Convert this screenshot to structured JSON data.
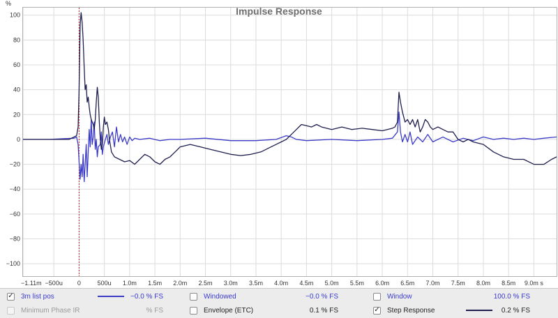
{
  "chart_data": {
    "type": "line",
    "title": "Impulse Response",
    "ylabel": "%",
    "ylim": [
      -110,
      106
    ],
    "xlim_ms": [
      -1.11,
      9.45
    ],
    "y_ticks": [
      100,
      80,
      60,
      40,
      20,
      0,
      -20,
      -40,
      -60,
      -80,
      -100
    ],
    "x_ticks": [
      {
        "v": -1.11,
        "label": "-1.11m"
      },
      {
        "v": -0.5,
        "label": "-500u"
      },
      {
        "v": 0,
        "label": "0"
      },
      {
        "v": 0.5,
        "label": "500u"
      },
      {
        "v": 1.0,
        "label": "1.0m"
      },
      {
        "v": 1.5,
        "label": "1.5m"
      },
      {
        "v": 2.0,
        "label": "2.0m"
      },
      {
        "v": 2.5,
        "label": "2.5m"
      },
      {
        "v": 3.0,
        "label": "3.0m"
      },
      {
        "v": 3.5,
        "label": "3.5m"
      },
      {
        "v": 4.0,
        "label": "4.0m"
      },
      {
        "v": 4.5,
        "label": "4.5m"
      },
      {
        "v": 5.0,
        "label": "5.0m"
      },
      {
        "v": 5.5,
        "label": "5.5m"
      },
      {
        "v": 6.0,
        "label": "6.0m"
      },
      {
        "v": 6.5,
        "label": "6.5m"
      },
      {
        "v": 7.0,
        "label": "7.0m"
      },
      {
        "v": 7.5,
        "label": "7.5m"
      },
      {
        "v": 8.0,
        "label": "8.0m"
      },
      {
        "v": 8.5,
        "label": "8.5m"
      },
      {
        "v": 9.0,
        "label": "9.0m s"
      }
    ],
    "grid": true,
    "marker_x": 0,
    "series": [
      {
        "name": "3m list pos",
        "color": "#3b3bc8",
        "points": [
          [
            -1.11,
            0
          ],
          [
            -0.6,
            0
          ],
          [
            -0.1,
            1
          ],
          [
            -0.05,
            2
          ],
          [
            -0.02,
            -4
          ],
          [
            0,
            -18
          ],
          [
            0.02,
            -32
          ],
          [
            0.04,
            -20
          ],
          [
            0.06,
            -30
          ],
          [
            0.08,
            -12
          ],
          [
            0.1,
            -34
          ],
          [
            0.12,
            -20
          ],
          [
            0.14,
            -4
          ],
          [
            0.16,
            -30
          ],
          [
            0.18,
            -10
          ],
          [
            0.2,
            8
          ],
          [
            0.22,
            -6
          ],
          [
            0.24,
            16
          ],
          [
            0.26,
            -4
          ],
          [
            0.28,
            2
          ],
          [
            0.3,
            14
          ],
          [
            0.32,
            -8
          ],
          [
            0.34,
            0
          ],
          [
            0.36,
            -14
          ],
          [
            0.38,
            -6
          ],
          [
            0.42,
            -4
          ],
          [
            0.44,
            6
          ],
          [
            0.46,
            -12
          ],
          [
            0.48,
            -6
          ],
          [
            0.52,
            0
          ],
          [
            0.55,
            4
          ],
          [
            0.58,
            -4
          ],
          [
            0.62,
            2
          ],
          [
            0.66,
            6
          ],
          [
            0.7,
            -6
          ],
          [
            0.74,
            10
          ],
          [
            0.78,
            -2
          ],
          [
            0.82,
            4
          ],
          [
            0.86,
            -2
          ],
          [
            0.9,
            2
          ],
          [
            0.95,
            -4
          ],
          [
            1.0,
            2
          ],
          [
            1.05,
            -1
          ],
          [
            1.1,
            1
          ],
          [
            1.2,
            0
          ],
          [
            1.4,
            1
          ],
          [
            1.6,
            -1
          ],
          [
            1.8,
            0
          ],
          [
            2.0,
            0
          ],
          [
            2.5,
            1
          ],
          [
            3.0,
            -1
          ],
          [
            3.5,
            -1
          ],
          [
            3.9,
            0
          ],
          [
            4.1,
            3
          ],
          [
            4.2,
            2
          ],
          [
            4.3,
            0
          ],
          [
            4.5,
            -1
          ],
          [
            5.0,
            0
          ],
          [
            5.5,
            -1
          ],
          [
            6.0,
            0
          ],
          [
            6.2,
            1
          ],
          [
            6.3,
            6
          ],
          [
            6.33,
            22
          ],
          [
            6.36,
            6
          ],
          [
            6.4,
            -2
          ],
          [
            6.45,
            4
          ],
          [
            6.5,
            -2
          ],
          [
            6.55,
            6
          ],
          [
            6.6,
            -4
          ],
          [
            6.7,
            2
          ],
          [
            6.8,
            -2
          ],
          [
            6.9,
            4
          ],
          [
            7.0,
            -2
          ],
          [
            7.2,
            2
          ],
          [
            7.4,
            -2
          ],
          [
            7.6,
            1
          ],
          [
            7.8,
            -1
          ],
          [
            8.0,
            2
          ],
          [
            8.2,
            0
          ],
          [
            8.4,
            1
          ],
          [
            8.6,
            0
          ],
          [
            8.8,
            1
          ],
          [
            9.0,
            0
          ],
          [
            9.2,
            1
          ],
          [
            9.45,
            2
          ]
        ]
      },
      {
        "name": "Step Response",
        "color": "#1e1e4e",
        "points": [
          [
            -1.11,
            0
          ],
          [
            -0.6,
            0
          ],
          [
            -0.2,
            0
          ],
          [
            -0.05,
            3
          ],
          [
            -0.02,
            10
          ],
          [
            0,
            40
          ],
          [
            0.02,
            92
          ],
          [
            0.04,
            102
          ],
          [
            0.06,
            94
          ],
          [
            0.08,
            80
          ],
          [
            0.1,
            58
          ],
          [
            0.12,
            40
          ],
          [
            0.14,
            44
          ],
          [
            0.16,
            30
          ],
          [
            0.18,
            34
          ],
          [
            0.2,
            26
          ],
          [
            0.22,
            20
          ],
          [
            0.24,
            16
          ],
          [
            0.26,
            14
          ],
          [
            0.28,
            12
          ],
          [
            0.3,
            8
          ],
          [
            0.32,
            16
          ],
          [
            0.34,
            30
          ],
          [
            0.36,
            42
          ],
          [
            0.38,
            34
          ],
          [
            0.4,
            14
          ],
          [
            0.42,
            0
          ],
          [
            0.44,
            -8
          ],
          [
            0.46,
            -4
          ],
          [
            0.48,
            10
          ],
          [
            0.5,
            18
          ],
          [
            0.52,
            12
          ],
          [
            0.55,
            14
          ],
          [
            0.58,
            8
          ],
          [
            0.6,
            0
          ],
          [
            0.64,
            -10
          ],
          [
            0.7,
            -14
          ],
          [
            0.8,
            -16
          ],
          [
            0.9,
            -18
          ],
          [
            1.0,
            -17
          ],
          [
            1.1,
            -20
          ],
          [
            1.2,
            -16
          ],
          [
            1.3,
            -12
          ],
          [
            1.4,
            -14
          ],
          [
            1.5,
            -18
          ],
          [
            1.6,
            -20
          ],
          [
            1.7,
            -16
          ],
          [
            1.8,
            -14
          ],
          [
            1.9,
            -10
          ],
          [
            2.0,
            -6
          ],
          [
            2.2,
            -4
          ],
          [
            2.4,
            -6
          ],
          [
            2.6,
            -8
          ],
          [
            2.8,
            -10
          ],
          [
            3.0,
            -12
          ],
          [
            3.2,
            -13
          ],
          [
            3.4,
            -12
          ],
          [
            3.6,
            -10
          ],
          [
            3.8,
            -6
          ],
          [
            3.9,
            -4
          ],
          [
            4.0,
            -2
          ],
          [
            4.1,
            0
          ],
          [
            4.2,
            4
          ],
          [
            4.3,
            8
          ],
          [
            4.4,
            12
          ],
          [
            4.5,
            11
          ],
          [
            4.6,
            10
          ],
          [
            4.7,
            12
          ],
          [
            4.8,
            10
          ],
          [
            5.0,
            8
          ],
          [
            5.2,
            10
          ],
          [
            5.4,
            8
          ],
          [
            5.6,
            9
          ],
          [
            5.8,
            8
          ],
          [
            6.0,
            7
          ],
          [
            6.1,
            8
          ],
          [
            6.2,
            9
          ],
          [
            6.25,
            10
          ],
          [
            6.3,
            14
          ],
          [
            6.33,
            38
          ],
          [
            6.36,
            30
          ],
          [
            6.4,
            22
          ],
          [
            6.45,
            14
          ],
          [
            6.5,
            16
          ],
          [
            6.55,
            12
          ],
          [
            6.6,
            16
          ],
          [
            6.65,
            10
          ],
          [
            6.7,
            16
          ],
          [
            6.75,
            6
          ],
          [
            6.8,
            10
          ],
          [
            6.85,
            16
          ],
          [
            6.9,
            14
          ],
          [
            6.95,
            10
          ],
          [
            7.0,
            8
          ],
          [
            7.1,
            10
          ],
          [
            7.2,
            8
          ],
          [
            7.3,
            6
          ],
          [
            7.4,
            6
          ],
          [
            7.5,
            0
          ],
          [
            7.6,
            -2
          ],
          [
            7.7,
            0
          ],
          [
            7.8,
            -2
          ],
          [
            8.0,
            -4
          ],
          [
            8.2,
            -10
          ],
          [
            8.4,
            -14
          ],
          [
            8.6,
            -16
          ],
          [
            8.8,
            -16
          ],
          [
            9.0,
            -20
          ],
          [
            9.2,
            -20
          ],
          [
            9.35,
            -16
          ],
          [
            9.45,
            -14
          ]
        ]
      }
    ]
  },
  "legend": {
    "row1": [
      {
        "label": "3m list pos",
        "checked": true,
        "enabled": true,
        "value": "−0.0 % FS",
        "swatch": "#3b3bc8",
        "style": "accent"
      },
      {
        "label": "Windowed",
        "checked": false,
        "enabled": true,
        "value": "−0.0 % FS",
        "swatch": "",
        "style": "accent"
      },
      {
        "label": "Window",
        "checked": false,
        "enabled": true,
        "value": "100.0 % FS",
        "swatch": "",
        "style": "accent"
      }
    ],
    "row2": [
      {
        "label": "Minimum Phase IR",
        "checked": false,
        "enabled": false,
        "value": "% FS",
        "swatch": "",
        "style": "disabled"
      },
      {
        "label": "Envelope (ETC)",
        "checked": false,
        "enabled": true,
        "value": "0.1 % FS",
        "swatch": "",
        "style": "dark"
      },
      {
        "label": "Step Response",
        "checked": true,
        "enabled": true,
        "value": "0.2 % FS",
        "swatch": "#1e1e4e",
        "style": "dark"
      }
    ]
  }
}
